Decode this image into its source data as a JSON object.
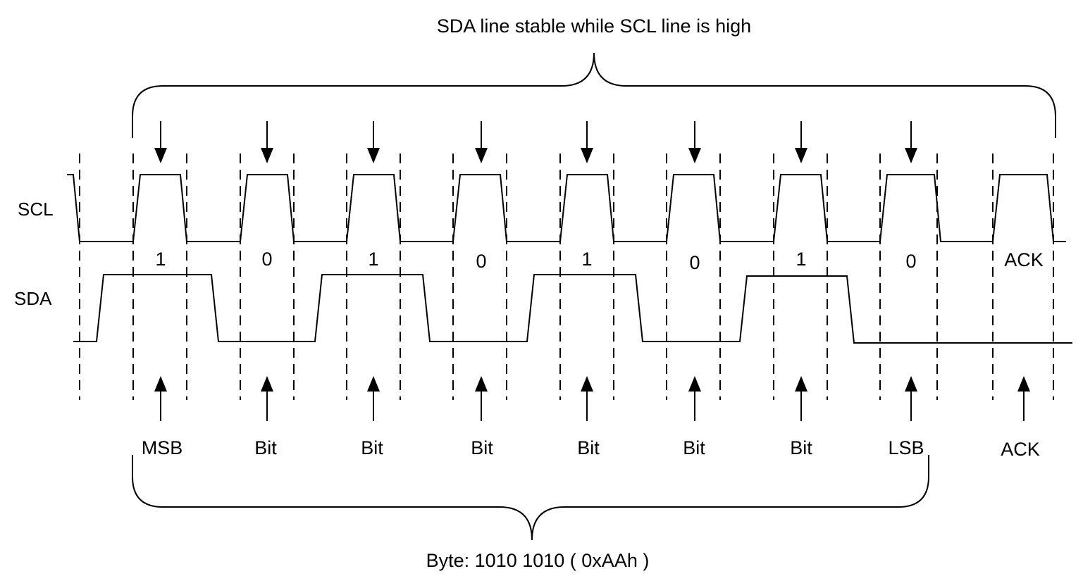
{
  "top_caption": "SDA line stable while SCL line is high",
  "bottom_caption": "Byte: 1010 1010 ( 0xAAh )",
  "signals": {
    "scl": "SCL",
    "sda": "SDA"
  },
  "bit_values": [
    "1",
    "0",
    "1",
    "0",
    "1",
    "0",
    "1",
    "0",
    "ACK"
  ],
  "bit_names": [
    "MSB",
    "Bit",
    "Bit",
    "Bit",
    "Bit",
    "Bit",
    "Bit",
    "LSB",
    "ACK"
  ]
}
